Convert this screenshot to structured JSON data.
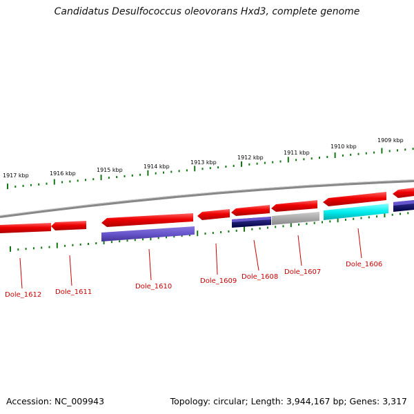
{
  "title": "Candidatus Desulfococcus oleovorans Hxd3, complete genome",
  "footer": {
    "accession": "Accession: NC_009943",
    "summary": "Topology: circular; Length: 3,944,167 bp; Genes: 3,317"
  },
  "colors": {
    "forward_gene": "#ee0000",
    "reverse_blue": "#6655cc",
    "dark_blue": "#101060",
    "gray": "#aaaaaa",
    "cyan": "#00eeee",
    "tick": "#117711",
    "backbone": "#888888",
    "label": "#cc0000"
  },
  "scale_labels": [
    "1917 kbp",
    "1916 kbp",
    "1915 kbp",
    "1914 kbp",
    "1913 kbp",
    "1912 kbp",
    "1911 kbp",
    "1910 kbp",
    "1909 kbp"
  ],
  "gene_labels": [
    "Dole_1612",
    "Dole_1611",
    "Dole_1610",
    "Dole_1609",
    "Dole_1608",
    "Dole_1607",
    "Dole_1606"
  ]
}
